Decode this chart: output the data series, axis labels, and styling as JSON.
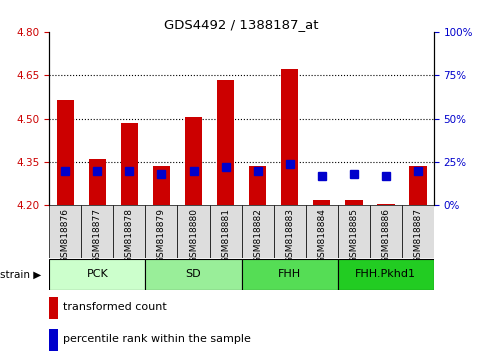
{
  "title": "GDS4492 / 1388187_at",
  "samples": [
    "GSM818876",
    "GSM818877",
    "GSM818878",
    "GSM818879",
    "GSM818880",
    "GSM818881",
    "GSM818882",
    "GSM818883",
    "GSM818884",
    "GSM818885",
    "GSM818886",
    "GSM818887"
  ],
  "red_values": [
    4.565,
    4.36,
    4.485,
    4.335,
    4.505,
    4.635,
    4.335,
    4.672,
    4.22,
    4.22,
    4.205,
    4.335
  ],
  "blue_values_pct": [
    20,
    20,
    20,
    18,
    20,
    22,
    20,
    24,
    17,
    18,
    17,
    20
  ],
  "ylim_left": [
    4.2,
    4.8
  ],
  "ylim_right": [
    0,
    100
  ],
  "yticks_left": [
    4.2,
    4.35,
    4.5,
    4.65,
    4.8
  ],
  "yticks_right": [
    0,
    25,
    50,
    75,
    100
  ],
  "hlines": [
    4.35,
    4.5,
    4.65
  ],
  "strain_groups": [
    {
      "label": "PCK",
      "start": 0,
      "end": 3
    },
    {
      "label": "SD",
      "start": 3,
      "end": 6
    },
    {
      "label": "FHH",
      "start": 6,
      "end": 9
    },
    {
      "label": "FHH.Pkhd1",
      "start": 9,
      "end": 12
    }
  ],
  "strain_colors": [
    "#ccffcc",
    "#99ee99",
    "#55dd55",
    "#22cc22"
  ],
  "bar_bottom": 4.2,
  "bar_width": 0.55,
  "blue_marker_size": 6,
  "red_color": "#cc0000",
  "blue_color": "#0000cc",
  "left_tick_color": "#cc0000",
  "right_tick_color": "#0000cc",
  "xtick_bg_color": "#dddddd",
  "legend_items": [
    {
      "label": "transformed count",
      "color": "#cc0000"
    },
    {
      "label": "percentile rank within the sample",
      "color": "#0000cc"
    }
  ]
}
